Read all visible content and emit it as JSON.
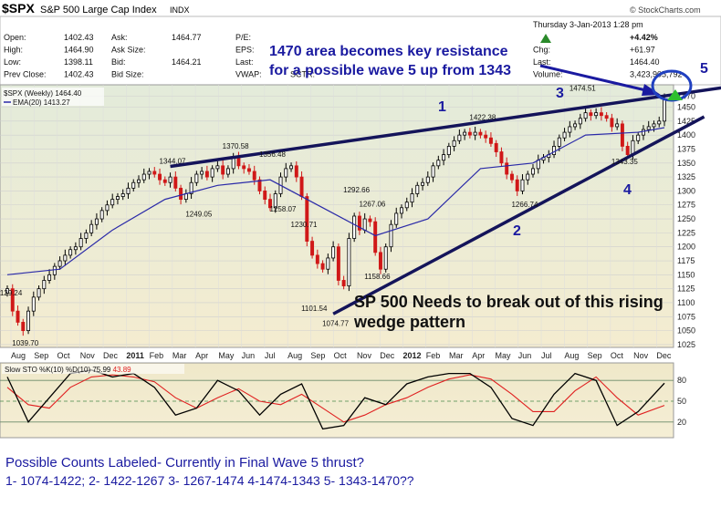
{
  "header": {
    "symbol": "$SPX",
    "name": "S&P 500 Large Cap Index",
    "exchange": "INDX",
    "date": "Thursday  3-Jan-2013  1:28 pm",
    "credit": "© StockCharts.com",
    "quote_left": [
      {
        "label": "Open:",
        "value": "1402.43"
      },
      {
        "label": "High:",
        "value": "1464.90"
      },
      {
        "label": "Low:",
        "value": "1398.11"
      },
      {
        "label": "Prev Close:",
        "value": "1402.43"
      }
    ],
    "quote_mid": [
      {
        "label": "Ask:",
        "value": "1464.77"
      },
      {
        "label": "Ask Size:",
        "value": ""
      },
      {
        "label": "Bid:",
        "value": "1464.21"
      },
      {
        "label": "Bid Size:",
        "value": ""
      }
    ],
    "quote_mid2": [
      {
        "label": "P/E:",
        "value": ""
      },
      {
        "label": "EPS:",
        "value": ""
      },
      {
        "label": "Last:",
        "value": ""
      },
      {
        "label": "VWAP:",
        "value": ""
      }
    ],
    "sctr_label": "SCTR:",
    "quote_right": [
      {
        "label": "",
        "value": "+4.42%"
      },
      {
        "label": "Chg:",
        "value": "+61.97"
      },
      {
        "label": "Last:",
        "value": "1464.40"
      },
      {
        "label": "Volume:",
        "value": "3,423,905,792"
      }
    ]
  },
  "legend": {
    "price": "$SPX (Weekly) 1464.40",
    "ema": "EMA(20) 1413.27",
    "sto_prefix": "Slow STO %K(10) %D(10)",
    "sto_k": "75.99",
    "sto_d": "43.89"
  },
  "annotations": {
    "resistance_line1": "1470 area becomes key resistance",
    "resistance_line2": "for a possible wave 5 up from 1343",
    "wedge_line1": "SP 500 Needs to break out of this rising",
    "wedge_line2": "wedge pattern",
    "counts_line1": "Possible Counts Labeled- Currently in Final Wave 5 thrust?",
    "counts_line2": "1- 1074-1422; 2- 1422-1267   3- 1267-1474   4-1474-1343   5- 1343-1470??",
    "wave1": "1",
    "wave2": "2",
    "wave3": "3",
    "wave4": "4",
    "wave5": "5"
  },
  "chart_data": [
    {
      "type": "line",
      "title": "$SPX (Weekly) 1464.40",
      "ylim": [
        1020,
        1490
      ],
      "y_ticks": [
        1025,
        1050,
        1075,
        1100,
        1125,
        1150,
        1175,
        1200,
        1225,
        1250,
        1275,
        1300,
        1325,
        1350,
        1375,
        1400,
        1425,
        1450,
        1470
      ],
      "x_tick_labels": [
        "Aug",
        "Sep",
        "Oct",
        "Nov",
        "Dec",
        "2011",
        "Feb",
        "Mar",
        "Apr",
        "May",
        "Jun",
        "Jul",
        "Aug",
        "Sep",
        "Oct",
        "Nov",
        "Dec",
        "2012",
        "Feb",
        "Mar",
        "Apr",
        "May",
        "Jun",
        "Jul",
        "Aug",
        "Sep",
        "Oct",
        "Nov",
        "Dec"
      ],
      "grid": true,
      "price_labels": [
        {
          "text": "1129.24",
          "x": 0,
          "y": 1129.24
        },
        {
          "text": "1039.70",
          "x": 3,
          "y": 1039.7
        },
        {
          "text": "1344.07",
          "x": 31,
          "y": 1344.07
        },
        {
          "text": "1249.05",
          "x": 36,
          "y": 1249.05
        },
        {
          "text": "1370.58",
          "x": 43,
          "y": 1370.58
        },
        {
          "text": "1356.48",
          "x": 50,
          "y": 1356.48
        },
        {
          "text": "1258.07",
          "x": 52,
          "y": 1258.07
        },
        {
          "text": "1230.71",
          "x": 56,
          "y": 1230.71
        },
        {
          "text": "1101.54",
          "x": 58,
          "y": 1101.54
        },
        {
          "text": "1074.77",
          "x": 62,
          "y": 1074.77
        },
        {
          "text": "1292.66",
          "x": 66,
          "y": 1292.66
        },
        {
          "text": "1267.06",
          "x": 69,
          "y": 1267.06
        },
        {
          "text": "1158.66",
          "x": 70,
          "y": 1158.66
        },
        {
          "text": "1422.38",
          "x": 90,
          "y": 1422.38
        },
        {
          "text": "1266.74",
          "x": 98,
          "y": 1266.74
        },
        {
          "text": "1474.51",
          "x": 109,
          "y": 1474.51
        },
        {
          "text": "1343.35",
          "x": 117,
          "y": 1343.35
        }
      ],
      "series": [
        {
          "name": "$SPX",
          "x": [
            0,
            1,
            2,
            3,
            4,
            5,
            6,
            7,
            8,
            9,
            10,
            11,
            12,
            13,
            14,
            15,
            16,
            17,
            18,
            19,
            20,
            21,
            22,
            23,
            24,
            25,
            26,
            27,
            28,
            29,
            30,
            31,
            32,
            33,
            34,
            35,
            36,
            37,
            38,
            39,
            40,
            41,
            42,
            43,
            44,
            45,
            46,
            47,
            48,
            49,
            50,
            51,
            52,
            53,
            54,
            55,
            56,
            57,
            58,
            59,
            60,
            61,
            62,
            63,
            64,
            65,
            66,
            67,
            68,
            69,
            70,
            71,
            72,
            73,
            74,
            75,
            76,
            77,
            78,
            79,
            80,
            81,
            82,
            83,
            84,
            85,
            86,
            87,
            88,
            89,
            90,
            91,
            92,
            93,
            94,
            95,
            96,
            97,
            98,
            99,
            100,
            101,
            102,
            103,
            104,
            105,
            106,
            107,
            108,
            109,
            110,
            111,
            112,
            113,
            114,
            115,
            116,
            117,
            118,
            119,
            120,
            121,
            122,
            123,
            124,
            125
          ],
          "values": [
            1125,
            1085,
            1065,
            1050,
            1085,
            1110,
            1125,
            1140,
            1150,
            1165,
            1175,
            1185,
            1195,
            1200,
            1215,
            1225,
            1240,
            1250,
            1265,
            1275,
            1285,
            1290,
            1295,
            1305,
            1315,
            1320,
            1330,
            1335,
            1330,
            1320,
            1315,
            1325,
            1305,
            1285,
            1295,
            1315,
            1330,
            1335,
            1325,
            1340,
            1345,
            1330,
            1340,
            1360,
            1345,
            1340,
            1335,
            1320,
            1300,
            1285,
            1270,
            1295,
            1325,
            1340,
            1345,
            1325,
            1290,
            1210,
            1185,
            1170,
            1160,
            1180,
            1200,
            1140,
            1130,
            1215,
            1255,
            1230,
            1250,
            1245,
            1190,
            1160,
            1200,
            1240,
            1260,
            1270,
            1280,
            1295,
            1310,
            1315,
            1325,
            1345,
            1355,
            1365,
            1380,
            1390,
            1400,
            1405,
            1400,
            1405,
            1400,
            1395,
            1385,
            1370,
            1350,
            1330,
            1320,
            1300,
            1320,
            1330,
            1340,
            1355,
            1360,
            1365,
            1380,
            1395,
            1405,
            1415,
            1420,
            1430,
            1440,
            1435,
            1440,
            1435,
            1430,
            1415,
            1420,
            1380,
            1365,
            1390,
            1400,
            1410,
            1415,
            1420,
            1425,
            1464.4
          ]
        },
        {
          "name": "EMA(20)",
          "x": [
            0,
            10,
            20,
            30,
            40,
            50,
            60,
            70,
            80,
            90,
            100,
            110,
            120,
            125
          ],
          "values": [
            1150,
            1160,
            1230,
            1285,
            1310,
            1320,
            1270,
            1220,
            1250,
            1340,
            1350,
            1400,
            1405,
            1413.27
          ]
        }
      ],
      "trendlines": [
        {
          "name": "resistance",
          "x": [
            31,
            125
          ],
          "y": [
            1344,
            1470
          ]
        },
        {
          "name": "support",
          "x": [
            62,
            125
          ],
          "y": [
            1080,
            1395
          ]
        }
      ]
    },
    {
      "type": "line",
      "title": "Slow STO %K(10) %D(10)",
      "ylim": [
        0,
        100
      ],
      "y_ticks": [
        20,
        50,
        80
      ],
      "series": [
        {
          "name": "%K",
          "x": [
            0,
            4,
            8,
            12,
            16,
            20,
            24,
            28,
            32,
            36,
            40,
            44,
            48,
            52,
            56,
            60,
            64,
            68,
            72,
            76,
            80,
            84,
            88,
            92,
            96,
            100,
            104,
            108,
            112,
            116,
            120,
            125
          ],
          "values": [
            85,
            20,
            55,
            90,
            95,
            85,
            90,
            70,
            30,
            40,
            80,
            65,
            30,
            60,
            75,
            10,
            15,
            55,
            45,
            75,
            85,
            90,
            90,
            70,
            25,
            15,
            60,
            90,
            80,
            15,
            35,
            75.99
          ]
        },
        {
          "name": "%D",
          "x": [
            0,
            4,
            8,
            12,
            16,
            20,
            24,
            28,
            32,
            36,
            40,
            44,
            48,
            52,
            56,
            60,
            64,
            68,
            72,
            76,
            80,
            84,
            88,
            92,
            96,
            100,
            104,
            108,
            112,
            116,
            120,
            125
          ],
          "values": [
            70,
            45,
            40,
            70,
            85,
            88,
            85,
            78,
            55,
            40,
            55,
            68,
            50,
            45,
            60,
            40,
            20,
            30,
            45,
            55,
            70,
            82,
            88,
            82,
            60,
            35,
            35,
            65,
            85,
            55,
            30,
            43.89
          ]
        }
      ]
    }
  ]
}
